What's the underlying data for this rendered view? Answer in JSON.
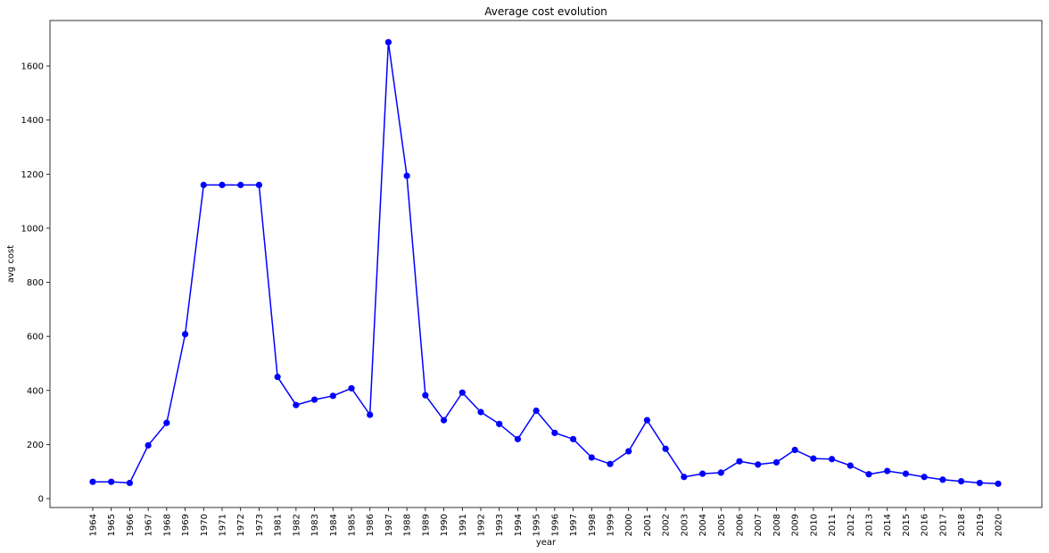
{
  "chart_data": {
    "type": "line",
    "title": "Average cost evolution",
    "xlabel": "year",
    "ylabel": "avg cost",
    "ylim": [
      -20,
      1750
    ],
    "yticks": [
      0,
      200,
      400,
      600,
      800,
      1000,
      1200,
      1400,
      1600
    ],
    "grid": false,
    "line_color": "#0000ff",
    "marker": "circle",
    "categories": [
      "1964",
      "1965",
      "1966",
      "1967",
      "1968",
      "1969",
      "1970",
      "1971",
      "1972",
      "1973",
      "1981",
      "1982",
      "1983",
      "1984",
      "1985",
      "1986",
      "1987",
      "1988",
      "1989",
      "1990",
      "1991",
      "1992",
      "1993",
      "1994",
      "1995",
      "1996",
      "1997",
      "1998",
      "1999",
      "2000",
      "2001",
      "2002",
      "2003",
      "2004",
      "2005",
      "2006",
      "2007",
      "2008",
      "2009",
      "2010",
      "2011",
      "2012",
      "2013",
      "2014",
      "2015",
      "2016",
      "2017",
      "2018",
      "2019",
      "2020"
    ],
    "values": [
      62,
      62,
      58,
      197,
      280,
      608,
      1160,
      1160,
      1160,
      1160,
      450,
      346,
      366,
      380,
      408,
      310,
      1688,
      1194,
      382,
      290,
      392,
      320,
      276,
      220,
      325,
      243,
      220,
      152,
      128,
      175,
      290,
      184,
      80,
      92,
      96,
      138,
      126,
      134,
      180,
      148,
      146,
      122,
      90,
      102,
      92,
      80,
      70,
      64,
      58,
      55
    ]
  }
}
